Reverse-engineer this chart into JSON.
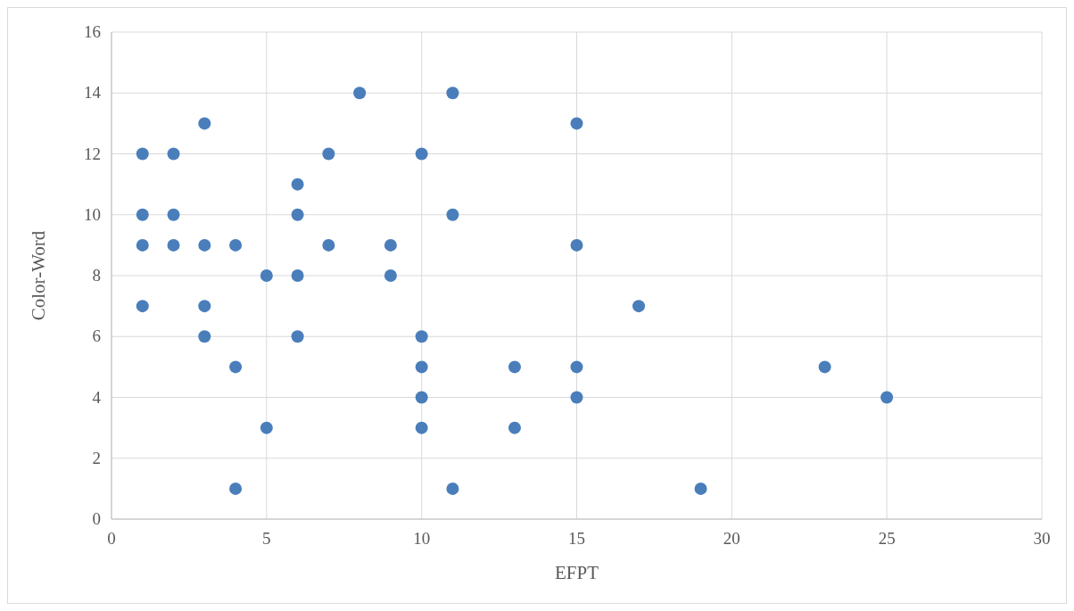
{
  "chart_data": {
    "type": "scatter",
    "xlabel": "EFPT",
    "ylabel": "Color-Word",
    "x": [
      1,
      1,
      1,
      1,
      2,
      2,
      2,
      3,
      3,
      3,
      3,
      4,
      4,
      4,
      5,
      5,
      6,
      6,
      6,
      6,
      7,
      7,
      8,
      9,
      9,
      10,
      10,
      10,
      10,
      10,
      11,
      11,
      11,
      13,
      13,
      15,
      15,
      15,
      15,
      17,
      19,
      23,
      25
    ],
    "values": [
      12,
      10,
      9,
      7,
      12,
      10,
      9,
      13,
      9,
      7,
      6,
      9,
      5,
      1,
      8,
      3,
      11,
      10,
      8,
      6,
      12,
      9,
      14,
      9,
      8,
      12,
      6,
      5,
      4,
      3,
      14,
      10,
      1,
      5,
      3,
      13,
      9,
      5,
      4,
      7,
      1,
      5,
      4
    ],
    "color": "#4a7ebb",
    "marker": "circle",
    "xlim": [
      0,
      30
    ],
    "xticks": [
      0,
      5,
      10,
      15,
      20,
      25,
      30
    ],
    "ylim": [
      0,
      16
    ],
    "yticks": [
      0,
      2,
      4,
      6,
      8,
      10,
      12,
      14,
      16
    ],
    "grid": true
  }
}
